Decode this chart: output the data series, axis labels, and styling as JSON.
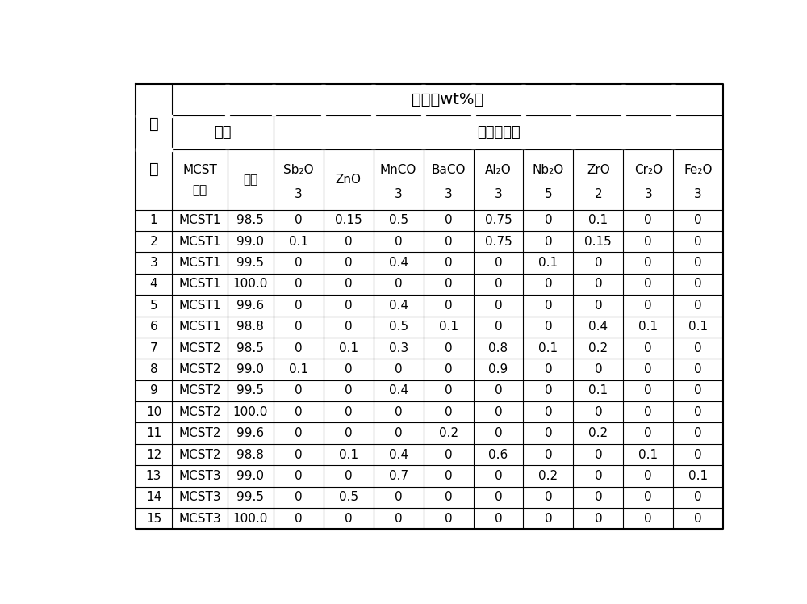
{
  "title": "组成（wt%）",
  "subheader_left": "基料",
  "subheader_right": "改性添加物",
  "left_label_top": "试",
  "left_label_bot": "样",
  "col_header_line1": [
    "MCST",
    "含量",
    "Sb₂O",
    "ZnO",
    "MnCO",
    "BaCO",
    "Al₂O",
    "Nb₂O",
    "ZrO",
    "Cr₂O",
    "Fe₂O"
  ],
  "col_header_line2": [
    "代号",
    "",
    "3",
    "",
    "3",
    "3",
    "3",
    "5",
    "2",
    "3",
    "3"
  ],
  "data_rows": [
    [
      "1",
      "MCST1",
      "98.5",
      "0",
      "0.15",
      "0.5",
      "0",
      "0.75",
      "0",
      "0.1",
      "0",
      "0"
    ],
    [
      "2",
      "MCST1",
      "99.0",
      "0.1",
      "0",
      "0",
      "0",
      "0.75",
      "0",
      "0.15",
      "0",
      "0"
    ],
    [
      "3",
      "MCST1",
      "99.5",
      "0",
      "0",
      "0.4",
      "0",
      "0",
      "0.1",
      "0",
      "0",
      "0"
    ],
    [
      "4",
      "MCST1",
      "100.0",
      "0",
      "0",
      "0",
      "0",
      "0",
      "0",
      "0",
      "0",
      "0"
    ],
    [
      "5",
      "MCST1",
      "99.6",
      "0",
      "0",
      "0.4",
      "0",
      "0",
      "0",
      "0",
      "0",
      "0"
    ],
    [
      "6",
      "MCST1",
      "98.8",
      "0",
      "0",
      "0.5",
      "0.1",
      "0",
      "0",
      "0.4",
      "0.1",
      "0.1"
    ],
    [
      "7",
      "MCST2",
      "98.5",
      "0",
      "0.1",
      "0.3",
      "0",
      "0.8",
      "0.1",
      "0.2",
      "0",
      "0"
    ],
    [
      "8",
      "MCST2",
      "99.0",
      "0.1",
      "0",
      "0",
      "0",
      "0.9",
      "0",
      "0",
      "0",
      "0"
    ],
    [
      "9",
      "MCST2",
      "99.5",
      "0",
      "0",
      "0.4",
      "0",
      "0",
      "0",
      "0.1",
      "0",
      "0"
    ],
    [
      "10",
      "MCST2",
      "100.0",
      "0",
      "0",
      "0",
      "0",
      "0",
      "0",
      "0",
      "0",
      "0"
    ],
    [
      "11",
      "MCST2",
      "99.6",
      "0",
      "0",
      "0",
      "0.2",
      "0",
      "0",
      "0.2",
      "0",
      "0"
    ],
    [
      "12",
      "MCST2",
      "98.8",
      "0",
      "0.1",
      "0.4",
      "0",
      "0.6",
      "0",
      "0",
      "0.1",
      "0"
    ],
    [
      "13",
      "MCST3",
      "99.0",
      "0",
      "0",
      "0.7",
      "0",
      "0",
      "0.2",
      "0",
      "0",
      "0.1"
    ],
    [
      "14",
      "MCST3",
      "99.5",
      "0",
      "0.5",
      "0",
      "0",
      "0",
      "0",
      "0",
      "0",
      "0"
    ],
    [
      "15",
      "MCST3",
      "100.0",
      "0",
      "0",
      "0",
      "0",
      "0",
      "0",
      "0",
      "0",
      "0"
    ]
  ],
  "bg_color": "#ffffff",
  "line_color": "#000000"
}
